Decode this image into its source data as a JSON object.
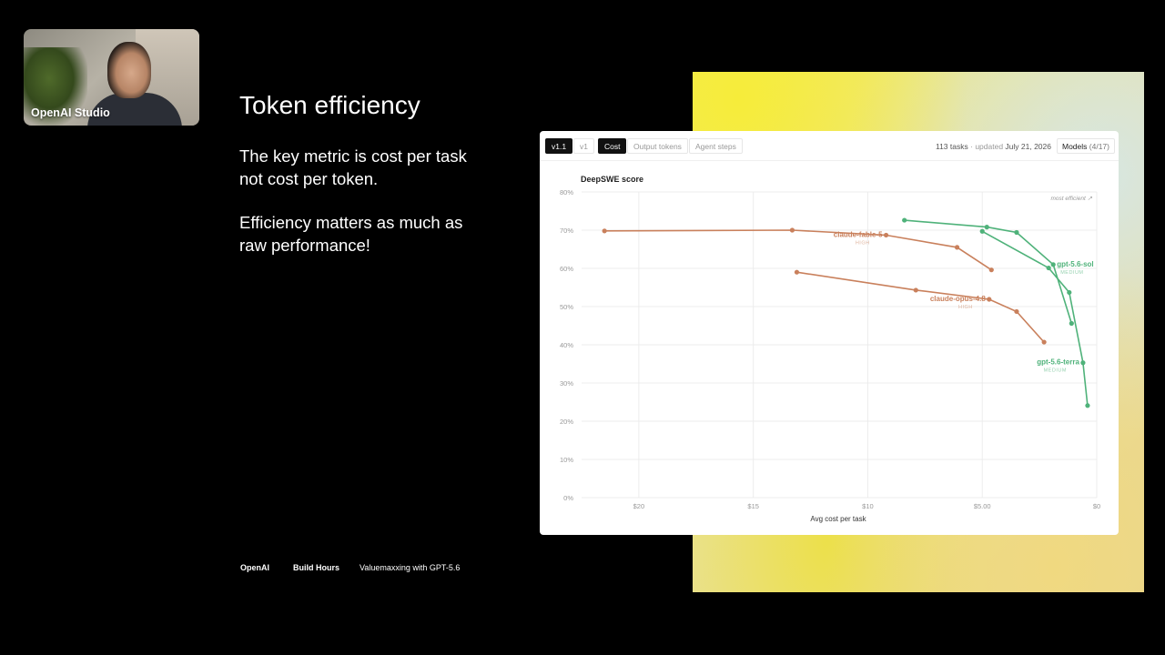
{
  "webcam": {
    "label": "OpenAI Studio"
  },
  "slide": {
    "title": "Token efficiency",
    "paragraph1_line1": "The key metric is cost per task",
    "paragraph1_line2": "not cost per token.",
    "paragraph2_line1": "Efficiency matters as much as",
    "paragraph2_line2": "raw performance!"
  },
  "footer": {
    "brand": "OpenAI",
    "series": "Build Hours",
    "episode": "Valuemaxxing with GPT-5.6"
  },
  "card": {
    "tabs": [
      "v1.1",
      "v1",
      "Cost",
      "Output tokens",
      "Agent steps"
    ],
    "tasks": "113 tasks",
    "updated_prefix": "· updated",
    "updated_date": "July 21, 2026",
    "models_label": "Models",
    "models_count": "(4/17)"
  },
  "colors": {
    "orange": "#c9805c",
    "green": "#4fb27a",
    "green_dark": "#3a9f64"
  },
  "chart_data": {
    "type": "line",
    "title": "DeepSWE score",
    "xlabel": "Avg cost per task",
    "ylabel": "",
    "x_reversed": true,
    "xlim": [
      22.5,
      0
    ],
    "ylim": [
      0,
      80
    ],
    "x_ticks": [
      {
        "value": 20,
        "label": "$20"
      },
      {
        "value": 15,
        "label": "$15"
      },
      {
        "value": 10,
        "label": "$10"
      },
      {
        "value": 5,
        "label": "$5.00"
      },
      {
        "value": 0,
        "label": "$0"
      }
    ],
    "y_ticks": [
      {
        "value": 80,
        "label": "80%"
      },
      {
        "value": 70,
        "label": "70%"
      },
      {
        "value": 60,
        "label": "60%"
      },
      {
        "value": 50,
        "label": "50%"
      },
      {
        "value": 40,
        "label": "40%"
      },
      {
        "value": 30,
        "label": "30%"
      },
      {
        "value": 20,
        "label": "20%"
      },
      {
        "value": 10,
        "label": "10%"
      },
      {
        "value": 0,
        "label": "0%"
      }
    ],
    "annotation": "most efficient ↗",
    "grid": true,
    "series": [
      {
        "name": "claude-fable-5",
        "sub": "HIGH",
        "color": "#c9805c",
        "points": [
          [
            21.5,
            69.8
          ],
          [
            13.3,
            70.0
          ],
          [
            9.2,
            68.7
          ],
          [
            6.1,
            65.5
          ],
          [
            4.6,
            59.6
          ]
        ],
        "label_point": 2
      },
      {
        "name": "claude-opus-4.8",
        "sub": "HIGH",
        "color": "#c9805c",
        "points": [
          [
            13.1,
            59.0
          ],
          [
            7.9,
            54.3
          ],
          [
            4.7,
            51.9
          ],
          [
            3.5,
            48.7
          ],
          [
            2.3,
            40.7
          ]
        ],
        "label_point": 2
      },
      {
        "name": "gpt-5.6-sol",
        "sub": "MEDIUM",
        "color": "#4fb27a",
        "points": [
          [
            8.4,
            72.6
          ],
          [
            4.8,
            70.8
          ],
          [
            3.5,
            69.4
          ],
          [
            1.9,
            61.0
          ],
          [
            1.1,
            45.6
          ]
        ],
        "label_point": 3
      },
      {
        "name": "gpt-5.6-terra",
        "sub": "MEDIUM",
        "color": "#4fb27a",
        "points": [
          [
            5.0,
            69.7
          ],
          [
            2.1,
            60.1
          ],
          [
            1.2,
            53.7
          ],
          [
            0.6,
            35.3
          ],
          [
            0.4,
            24.1
          ]
        ],
        "label_point": 3
      }
    ]
  }
}
